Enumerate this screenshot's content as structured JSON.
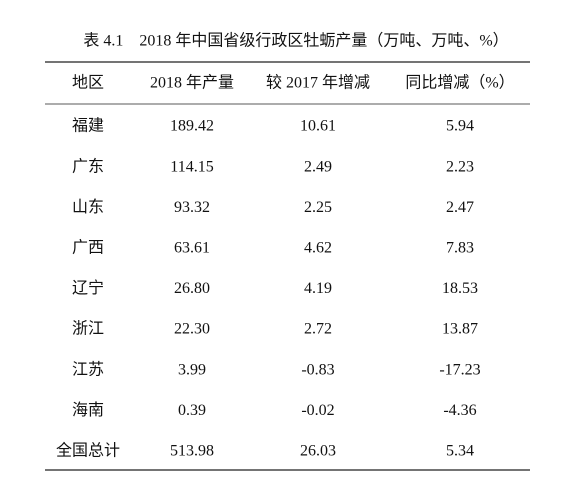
{
  "title": "表 4.1　2018 年中国省级行政区牡蛎产量（万吨、万吨、%）",
  "table": {
    "headers": [
      "地区",
      "2018 年产量",
      "较 2017 年增减",
      "同比增减（%）"
    ],
    "rows": [
      [
        "福建",
        "189.42",
        "10.61",
        "5.94"
      ],
      [
        "广东",
        "114.15",
        "2.49",
        "2.23"
      ],
      [
        "山东",
        "93.32",
        "2.25",
        "2.47"
      ],
      [
        "广西",
        "63.61",
        "4.62",
        "7.83"
      ],
      [
        "辽宁",
        "26.80",
        "4.19",
        "18.53"
      ],
      [
        "浙江",
        "22.30",
        "2.72",
        "13.87"
      ],
      [
        "江苏",
        "3.99",
        "-0.83",
        "-17.23"
      ],
      [
        "海南",
        "0.39",
        "-0.02",
        "-4.36"
      ],
      [
        "全国总计",
        "513.98",
        "26.03",
        "5.34"
      ]
    ]
  }
}
